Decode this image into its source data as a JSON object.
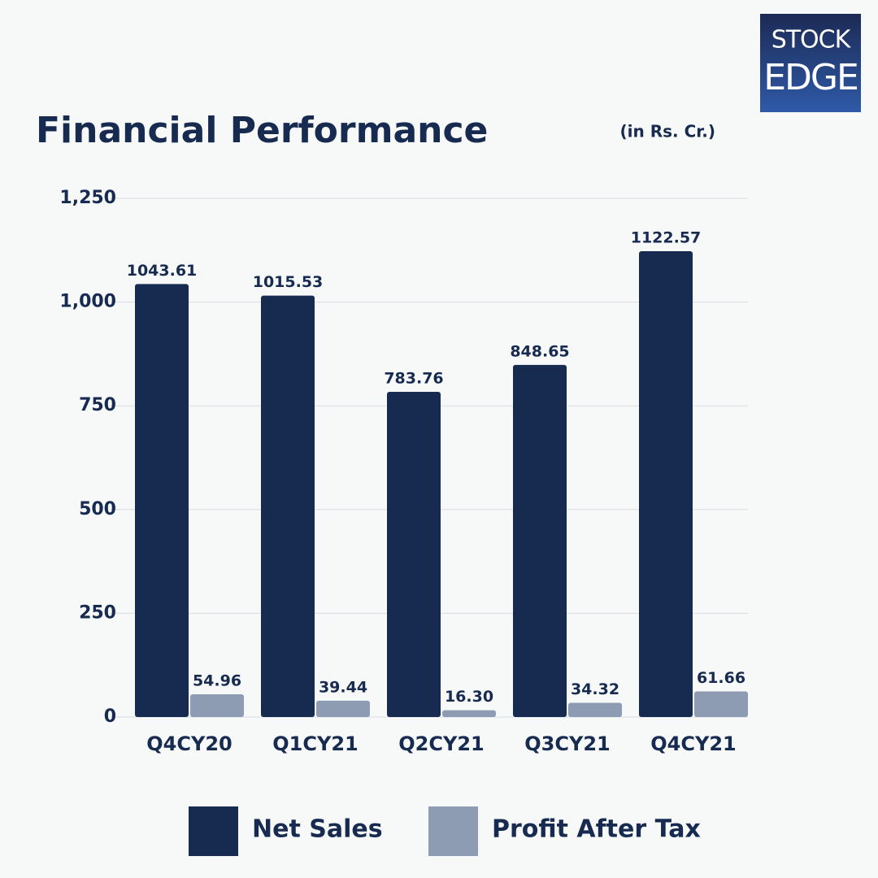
{
  "logo": {
    "line1": "STOCK",
    "line2": "EDGE"
  },
  "chart_data": {
    "type": "bar",
    "title": "Financial Performance",
    "subtitle": "(in Rs. Cr.)",
    "categories": [
      "Q4CY20",
      "Q1CY21",
      "Q2CY21",
      "Q3CY21",
      "Q4CY21"
    ],
    "series": [
      {
        "name": "Net Sales",
        "color": "#172a50",
        "values": [
          1043.61,
          1015.53,
          783.76,
          848.65,
          1122.57
        ]
      },
      {
        "name": "Profit After Tax",
        "color": "#8d9bb3",
        "values": [
          54.96,
          39.44,
          16.3,
          34.32,
          61.66
        ],
        "value_labels": [
          "54.96",
          "39.44",
          "16.30",
          "34.32",
          "61.66"
        ]
      }
    ],
    "ylim": [
      0,
      1250
    ],
    "yticks": [
      0,
      250,
      500,
      750,
      {
        "value": 1000,
        "label": "1,000"
      },
      {
        "value": 1250,
        "label": "1,250"
      }
    ],
    "grid": true
  }
}
